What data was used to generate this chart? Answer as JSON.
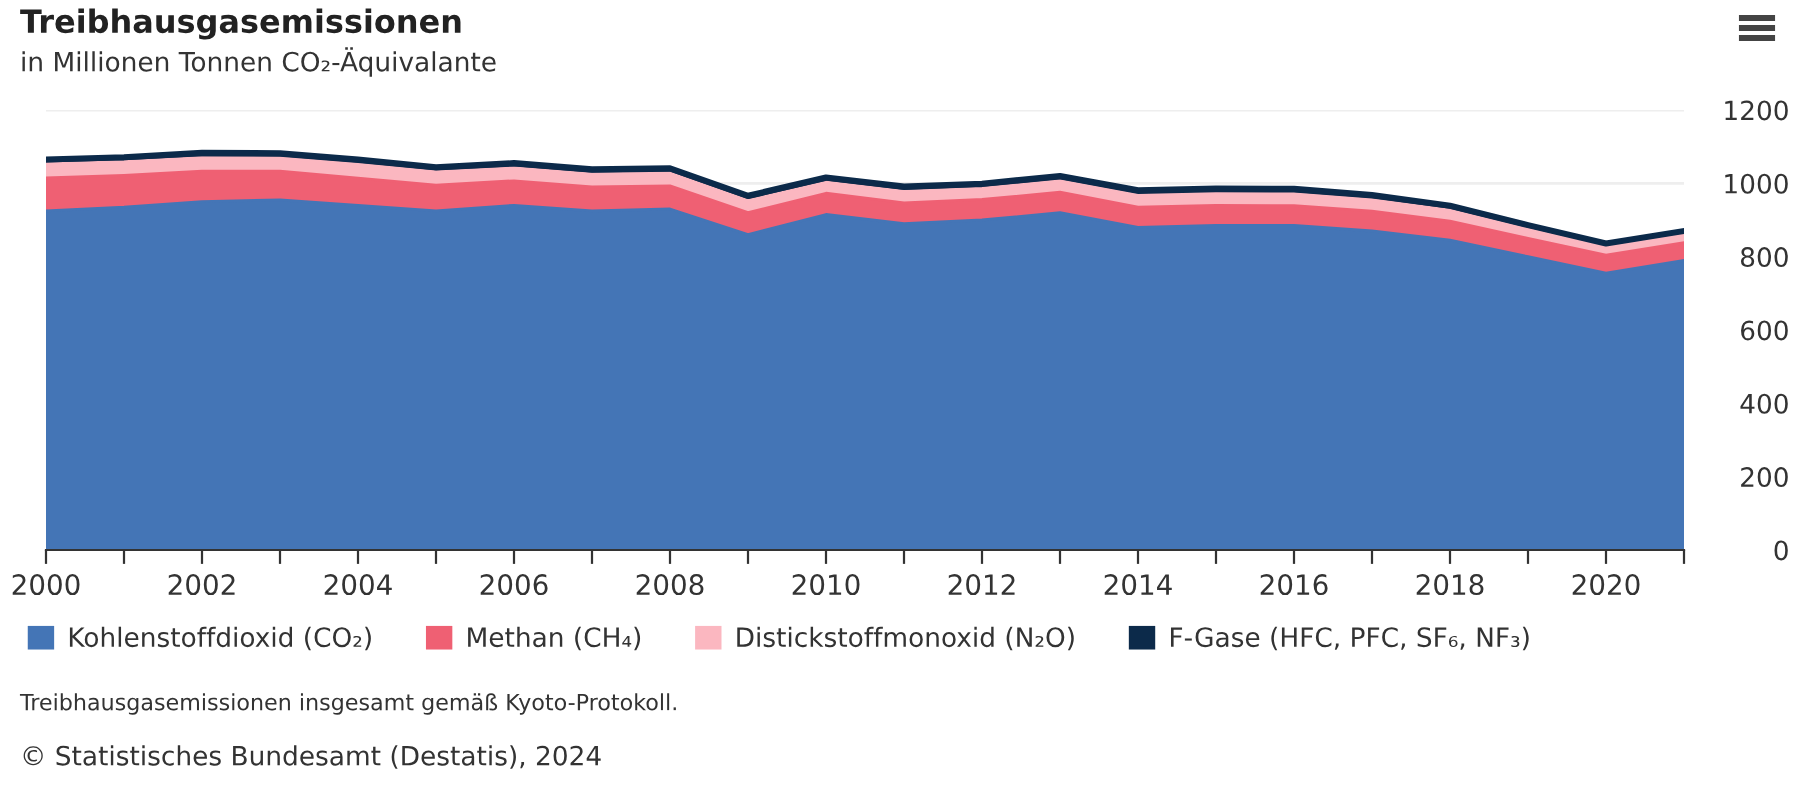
{
  "chart_data": {
    "type": "area",
    "stacked": true,
    "title": "Treibhausgasemissionen",
    "subtitle": "in Millionen Tonnen CO₂-Äquivalante",
    "x": [
      2000,
      2001,
      2002,
      2003,
      2004,
      2005,
      2006,
      2007,
      2008,
      2009,
      2010,
      2011,
      2012,
      2013,
      2014,
      2015,
      2016,
      2017,
      2018,
      2019,
      2020,
      2021
    ],
    "series": [
      {
        "name": "Kohlenstoffdioxid (CO₂)",
        "color": "#4475b6",
        "values": [
          925,
          935,
          950,
          955,
          940,
          925,
          940,
          925,
          930,
          860,
          915,
          890,
          900,
          920,
          880,
          885,
          885,
          870,
          845,
          800,
          755,
          790
        ]
      },
      {
        "name": "Methan (CH₄)",
        "color": "#ef6073",
        "values": [
          90,
          87,
          83,
          78,
          74,
          70,
          67,
          65,
          63,
          60,
          58,
          57,
          56,
          56,
          55,
          55,
          54,
          54,
          52,
          50,
          49,
          48
        ]
      },
      {
        "name": "Distickstoffmonoxid (N₂O)",
        "color": "#fbb7c0",
        "values": [
          38,
          37,
          37,
          36,
          38,
          36,
          35,
          35,
          35,
          33,
          30,
          31,
          30,
          31,
          32,
          32,
          32,
          31,
          30,
          25,
          22,
          22
        ]
      },
      {
        "name": "F-Gase (HFC, PFC, SF₆, NF₃)",
        "color": "#0c2a4a",
        "values": [
          12,
          12,
          13,
          13,
          13,
          13,
          13,
          13,
          13,
          13,
          13,
          13,
          13,
          13,
          14,
          14,
          14,
          13,
          12,
          11,
          10,
          10
        ]
      }
    ],
    "xlim": [
      2000,
      2021
    ],
    "xticks": [
      2000,
      {
        "value": 2001,
        "label": null
      },
      2002,
      {
        "value": 2003,
        "label": null
      },
      2004,
      {
        "value": 2005,
        "label": null
      },
      2006,
      {
        "value": 2007,
        "label": null
      },
      2008,
      {
        "value": 2009,
        "label": null
      },
      2010,
      {
        "value": 2011,
        "label": null
      },
      2012,
      {
        "value": 2013,
        "label": null
      },
      2014,
      {
        "value": 2015,
        "label": null
      },
      2016,
      {
        "value": 2017,
        "label": null
      },
      2018,
      {
        "value": 2019,
        "label": null
      },
      2020,
      {
        "value": 2021,
        "label": null
      }
    ],
    "ylim": [
      0,
      1200
    ],
    "yticks": [
      0,
      200,
      400,
      600,
      800,
      1000,
      1200
    ],
    "grid": "y",
    "legend": "bottom",
    "annotations": [
      "Treibhausgasemissionen insgesamt gemäß Kyoto-Protokoll.",
      "© Statistisches Bundesamt (Destatis), 2024"
    ]
  }
}
